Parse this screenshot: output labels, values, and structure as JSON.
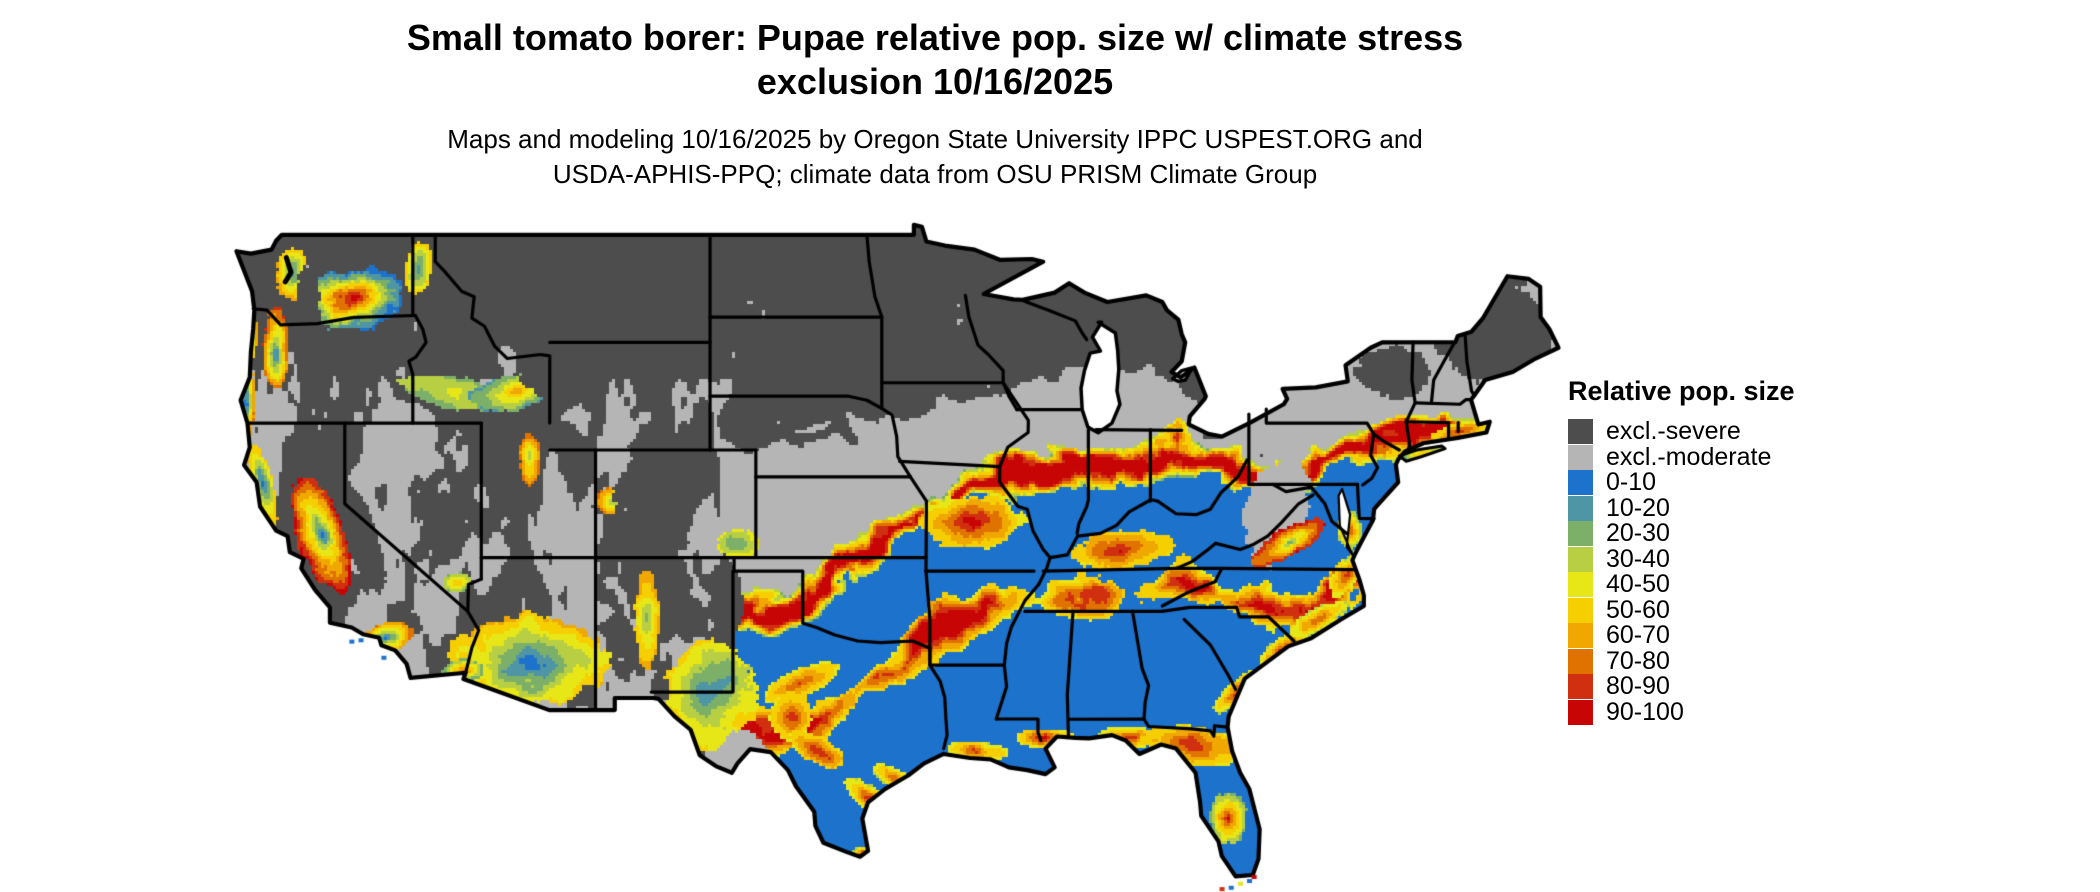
{
  "title": {
    "line1": "Small tomato borer: Pupae relative pop. size w/ climate stress",
    "line2": "exclusion 10/16/2025"
  },
  "subtitle": {
    "line1": "Maps and modeling 10/16/2025 by Oregon State University IPPC USPEST.ORG and",
    "line2": "USDA-APHIS-PPQ; climate data from OSU PRISM Climate Group"
  },
  "legend": {
    "title": "Relative pop. size",
    "items": [
      {
        "label": "excl.-severe",
        "color": "#4d4d4d"
      },
      {
        "label": "excl.-moderate",
        "color": "#b5b5b5"
      },
      {
        "label": "0-10",
        "color": "#1d72cc"
      },
      {
        "label": "10-20",
        "color": "#4e95a5"
      },
      {
        "label": "20-30",
        "color": "#7cb069"
      },
      {
        "label": "30-40",
        "color": "#b8cf43"
      },
      {
        "label": "40-50",
        "color": "#e7e718"
      },
      {
        "label": "50-60",
        "color": "#f6cf00"
      },
      {
        "label": "60-70",
        "color": "#f0a800"
      },
      {
        "label": "70-80",
        "color": "#e07200"
      },
      {
        "label": "80-90",
        "color": "#d03010"
      },
      {
        "label": "90-100",
        "color": "#c80505"
      }
    ]
  },
  "map": {
    "region": "Conterminous United States",
    "border_color": "#000000",
    "water_color": "#ffffff"
  }
}
